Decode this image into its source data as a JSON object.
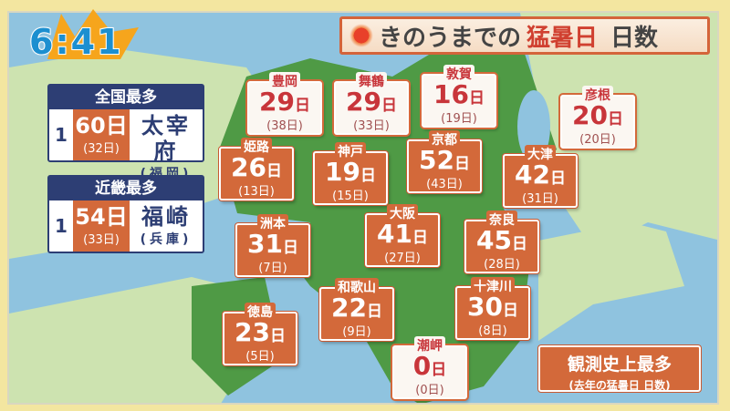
{
  "clock": {
    "time": "6:41"
  },
  "title": {
    "prefix": "きのうまでの",
    "highlight": "猛暑日",
    "suffix": "日数",
    "icon": "sun-icon"
  },
  "panels": [
    {
      "heading": "全国最多",
      "rank": "1",
      "days": "60日",
      "prev": "(32日)",
      "city": "太宰府",
      "pref": "(福岡)"
    },
    {
      "heading": "近畿最多",
      "rank": "1",
      "days": "54日",
      "prev": "(33日)",
      "city": "福崎",
      "pref": "(兵庫)"
    }
  ],
  "stations": [
    {
      "name": "豊岡",
      "days": "29",
      "prev": "(38日)",
      "record": false
    },
    {
      "name": "舞鶴",
      "days": "29",
      "prev": "(33日)",
      "record": false
    },
    {
      "name": "敦賀",
      "days": "16",
      "prev": "(19日)",
      "record": false
    },
    {
      "name": "彦根",
      "days": "20",
      "prev": "(20日)",
      "record": false
    },
    {
      "name": "姫路",
      "days": "26",
      "prev": "(13日)",
      "record": true
    },
    {
      "name": "神戸",
      "days": "19",
      "prev": "(15日)",
      "record": true
    },
    {
      "name": "京都",
      "days": "52",
      "prev": "(43日)",
      "record": true
    },
    {
      "name": "大津",
      "days": "42",
      "prev": "(31日)",
      "record": true
    },
    {
      "name": "洲本",
      "days": "31",
      "prev": "(7日)",
      "record": true
    },
    {
      "name": "大阪",
      "days": "41",
      "prev": "(27日)",
      "record": true
    },
    {
      "name": "奈良",
      "days": "45",
      "prev": "(28日)",
      "record": true
    },
    {
      "name": "和歌山",
      "days": "22",
      "prev": "(9日)",
      "record": true
    },
    {
      "name": "十津川",
      "days": "30",
      "prev": "(8日)",
      "record": true
    },
    {
      "name": "徳島",
      "days": "23",
      "prev": "(5日)",
      "record": true
    },
    {
      "name": "潮岬",
      "days": "0",
      "prev": "(0日)",
      "record": false
    }
  ],
  "day_unit": "日",
  "legend": {
    "title": "観測史上最多",
    "note": "(去年の猛暑日 日数)"
  },
  "colors": {
    "record": "#d3693a",
    "normal_text": "#c8353a",
    "panel": "#2d3e74",
    "sea": "#8fc3df",
    "land": "#cde3b0",
    "kinki": "#4f9a45"
  }
}
